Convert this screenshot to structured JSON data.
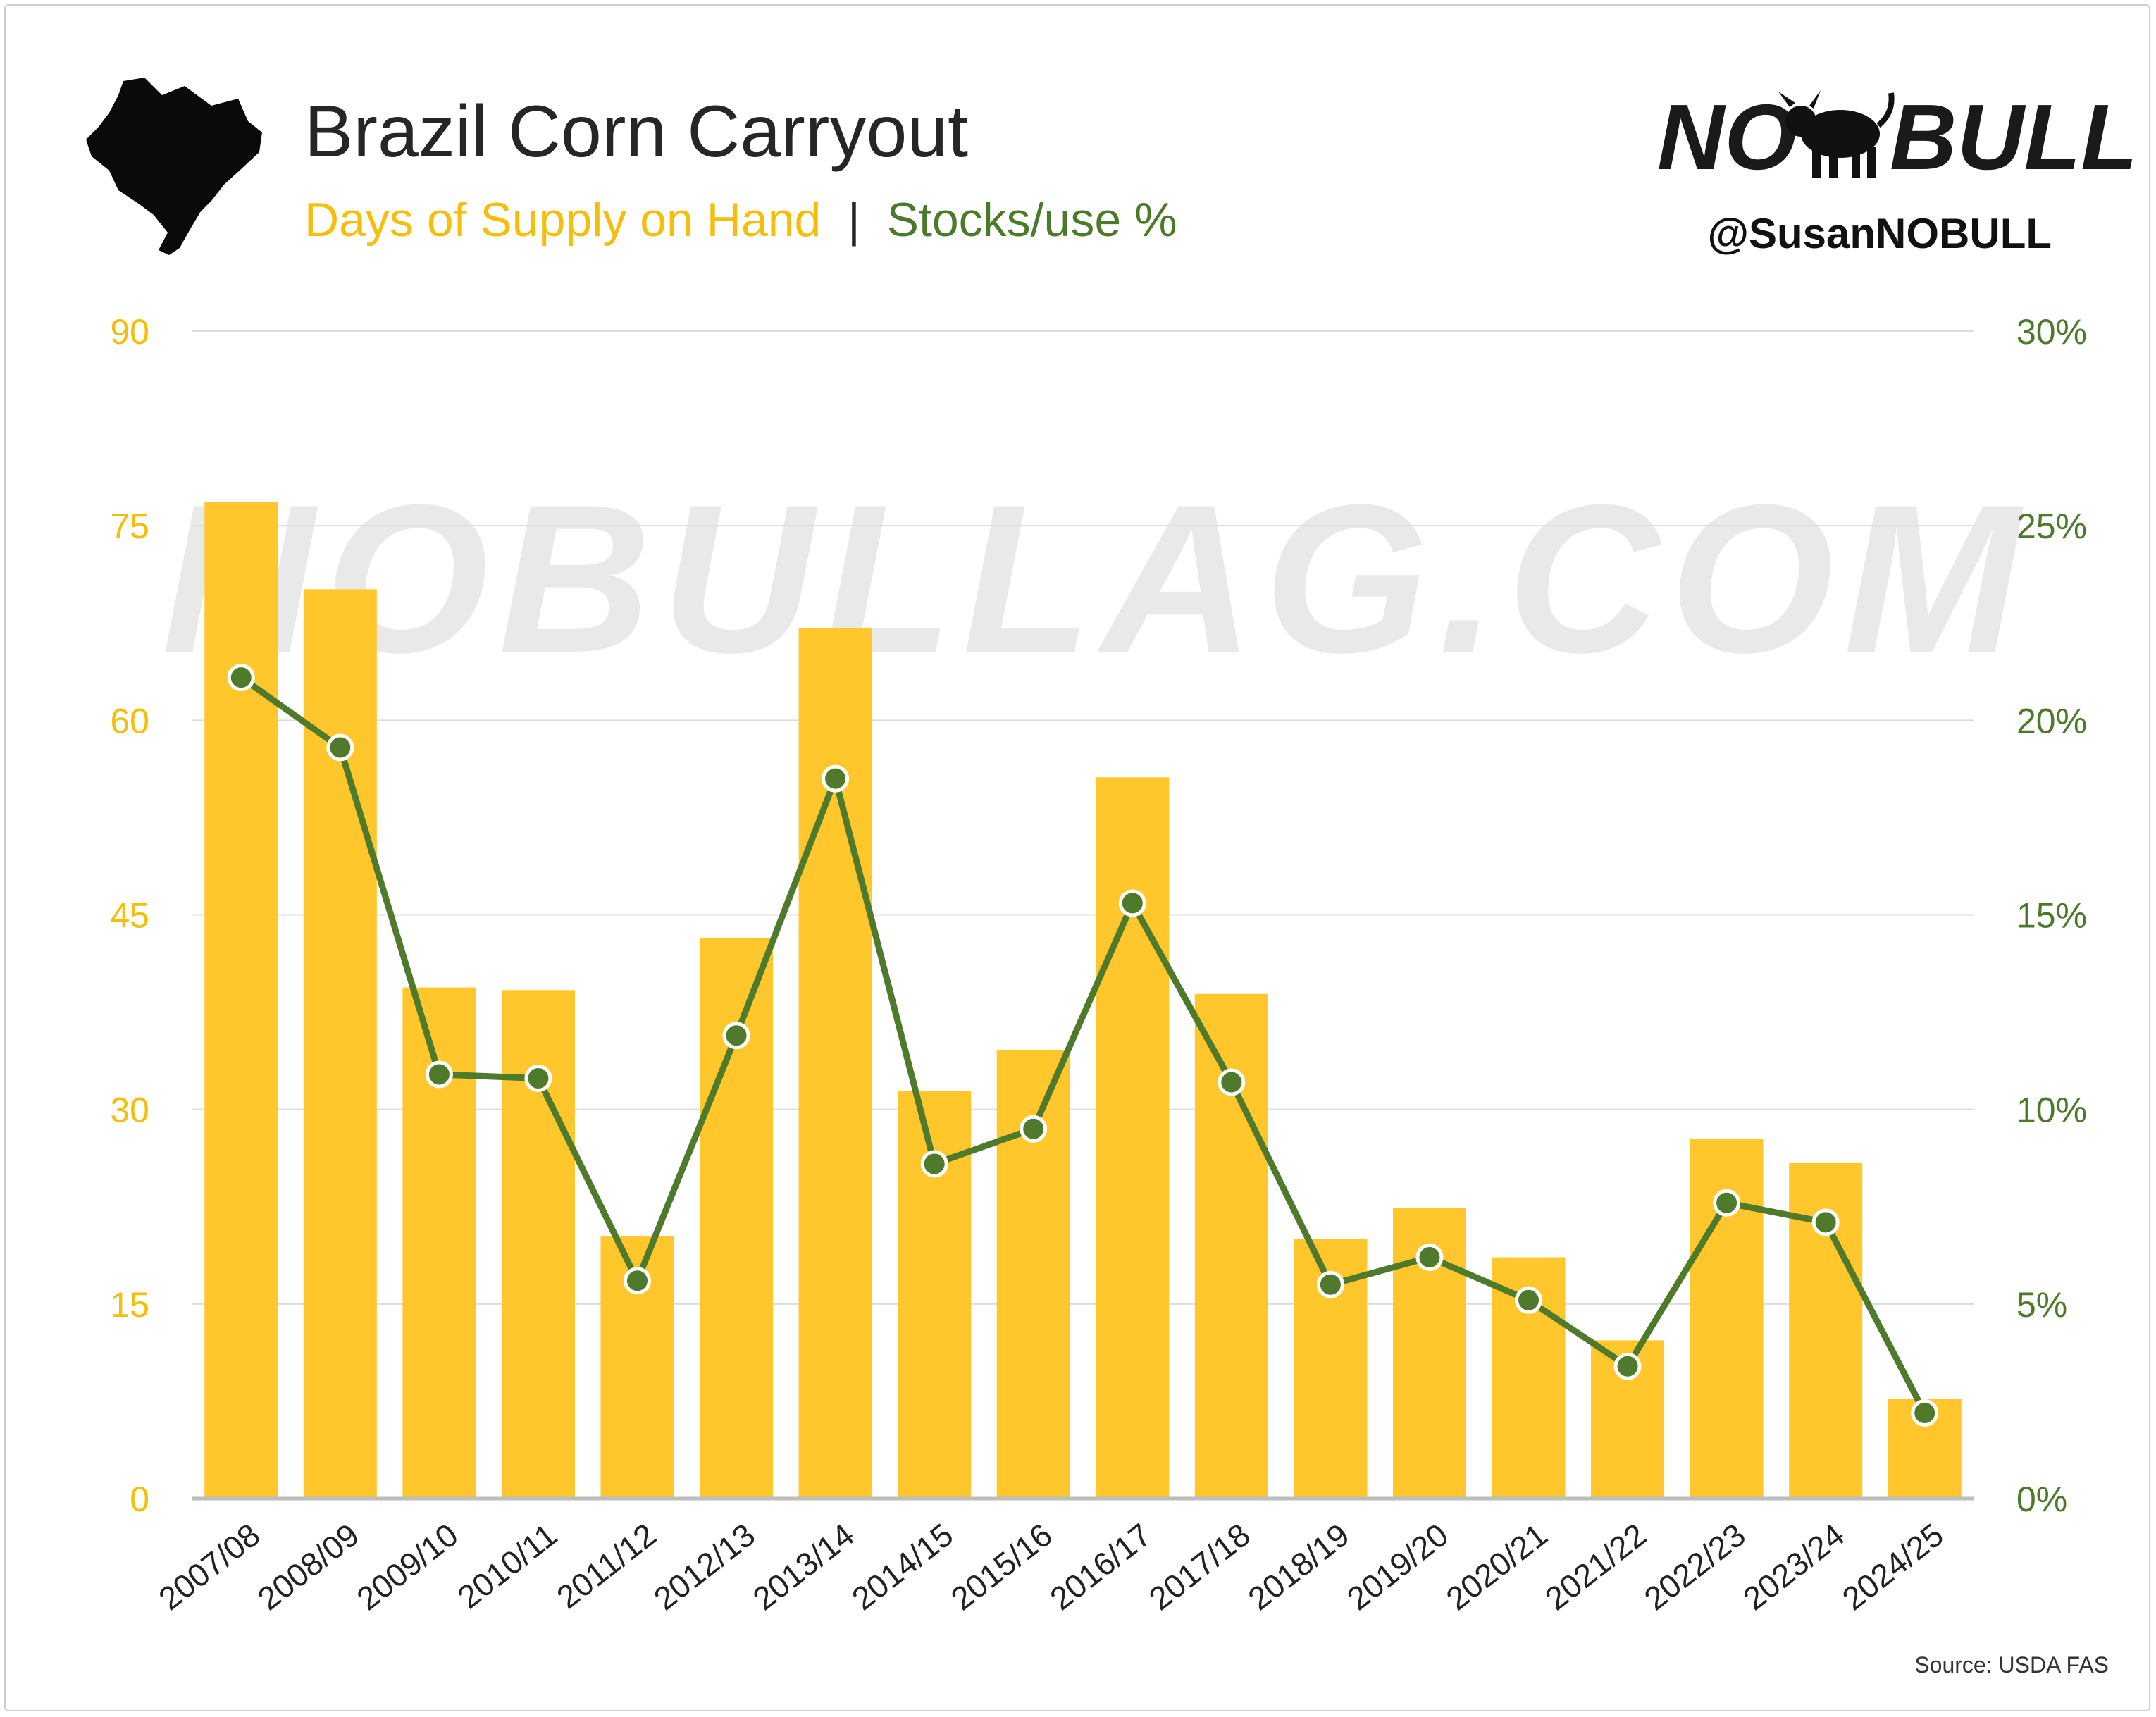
{
  "header": {
    "title": "Brazil Corn Carryout",
    "subtitle_part1": "Days of Supply on Hand",
    "subtitle_separator": " | ",
    "subtitle_part2": "Stocks/use %"
  },
  "brand": {
    "logo_left": "NO",
    "logo_right": "BULL",
    "logo_icon": "bull-icon",
    "handle": "@SusanNOBULL",
    "watermark": "NOBULLAG.COM",
    "map_icon": "brazil-map-icon"
  },
  "source": "Source: USDA FAS",
  "colors": {
    "bar": "#FFC72C",
    "line": "#4F7A2B",
    "left_axis_text": "#F5BE0B",
    "right_axis_text": "#4C7A2A",
    "title": "#262626"
  },
  "chart_data": {
    "type": "bar",
    "categories": [
      "2007/08",
      "2008/09",
      "2009/10",
      "2010/11",
      "2011/12",
      "2012/13",
      "2013/14",
      "2014/15",
      "2015/16",
      "2016/17",
      "2017/18",
      "2018/19",
      "2019/20",
      "2020/21",
      "2021/22",
      "2022/23",
      "2023/24",
      "2024/25"
    ],
    "series": [
      {
        "name": "Days of Supply on Hand",
        "type": "bar",
        "axis": "left",
        "values": [
          76.8,
          70.1,
          39.4,
          39.2,
          20.2,
          43.2,
          67.1,
          31.4,
          34.6,
          55.6,
          38.9,
          20.0,
          22.4,
          18.6,
          12.2,
          27.7,
          25.9,
          7.7
        ]
      },
      {
        "name": "Stocks/use %",
        "type": "line",
        "axis": "right",
        "values": [
          21.1,
          19.3,
          10.9,
          10.8,
          5.6,
          11.9,
          18.5,
          8.6,
          9.5,
          15.3,
          10.7,
          5.5,
          6.2,
          5.1,
          3.4,
          7.6,
          7.1,
          2.2
        ]
      }
    ],
    "y_left": {
      "min": 0,
      "max": 90,
      "ticks": [
        0,
        15,
        30,
        45,
        60,
        75,
        90
      ]
    },
    "y_right": {
      "min": 0,
      "max": 30,
      "ticks": [
        "0%",
        "5%",
        "10%",
        "15%",
        "20%",
        "25%",
        "30%"
      ]
    },
    "grid": true,
    "legend": "none"
  }
}
